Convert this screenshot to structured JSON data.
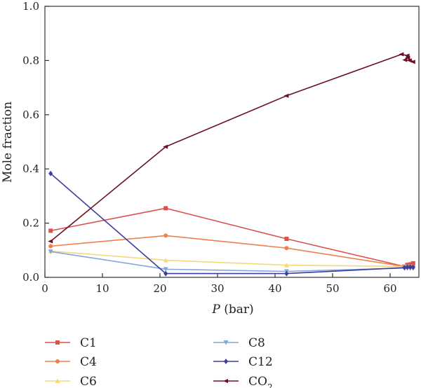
{
  "chart_data": {
    "type": "line",
    "title": "",
    "xlabel_var": "P",
    "xlabel_unit": " (bar)",
    "ylabel": "Mole fraction",
    "xlim": [
      0,
      65
    ],
    "ylim": [
      0,
      1.0
    ],
    "xticks": [
      0,
      10,
      20,
      30,
      40,
      50,
      60
    ],
    "xtick_labels": [
      "0",
      "10",
      "20",
      "30",
      "40",
      "50",
      "60"
    ],
    "yticks": [
      0,
      0.2,
      0.4,
      0.6,
      0.8,
      1.0
    ],
    "ytick_labels": [
      "0.0",
      "0.2",
      "0.4",
      "0.6",
      "0.8",
      "1.0"
    ],
    "grid": false,
    "legend_position": "below",
    "series": [
      {
        "name": "C1",
        "name_base": "C1",
        "name_sub": "",
        "color": "#d9534a",
        "marker": "square",
        "points": [
          [
            1,
            0.172
          ],
          [
            21,
            0.255
          ],
          [
            42,
            0.142
          ],
          [
            62.5,
            0.04
          ],
          [
            63.0,
            0.046
          ],
          [
            63.5,
            0.048
          ],
          [
            64.0,
            0.052
          ]
        ]
      },
      {
        "name": "C4",
        "name_base": "C4",
        "name_sub": "",
        "color": "#f07f4f",
        "marker": "circle",
        "points": [
          [
            1,
            0.115
          ],
          [
            21,
            0.154
          ],
          [
            42,
            0.108
          ],
          [
            62.5,
            0.04
          ],
          [
            63.0,
            0.041
          ],
          [
            63.5,
            0.042
          ],
          [
            64.0,
            0.04
          ]
        ]
      },
      {
        "name": "C6",
        "name_base": "C6",
        "name_sub": "",
        "color": "#f5d77e",
        "marker": "triangle-up",
        "points": [
          [
            1,
            0.097
          ],
          [
            21,
            0.063
          ],
          [
            42,
            0.045
          ],
          [
            62.5,
            0.04
          ],
          [
            63.0,
            0.038
          ],
          [
            63.5,
            0.038
          ],
          [
            64.0,
            0.037
          ]
        ]
      },
      {
        "name": "C8",
        "name_base": "C8",
        "name_sub": "",
        "color": "#7fa8d9",
        "marker": "triangle-down",
        "points": [
          [
            1,
            0.095
          ],
          [
            21,
            0.03
          ],
          [
            42,
            0.022
          ],
          [
            62.5,
            0.034
          ],
          [
            63.0,
            0.034
          ],
          [
            63.5,
            0.033
          ],
          [
            64.0,
            0.033
          ]
        ]
      },
      {
        "name": "C12",
        "name_base": "C12",
        "name_sub": "",
        "color": "#3d3d9e",
        "marker": "diamond",
        "points": [
          [
            1,
            0.383
          ],
          [
            21,
            0.014
          ],
          [
            42,
            0.014
          ],
          [
            62.5,
            0.036
          ],
          [
            63.0,
            0.037
          ],
          [
            63.5,
            0.038
          ],
          [
            64.0,
            0.037
          ]
        ]
      },
      {
        "name": "CO2",
        "name_base": "CO",
        "name_sub": "2",
        "color": "#6b1028",
        "marker": "triangle-left",
        "points": [
          [
            1,
            0.133
          ],
          [
            21,
            0.482
          ],
          [
            42,
            0.67
          ],
          [
            62.0,
            0.823
          ],
          [
            63.0,
            0.818
          ],
          [
            62.6,
            0.802
          ],
          [
            63.4,
            0.8
          ],
          [
            63.1,
            0.81
          ],
          [
            64.0,
            0.795
          ]
        ]
      }
    ]
  }
}
